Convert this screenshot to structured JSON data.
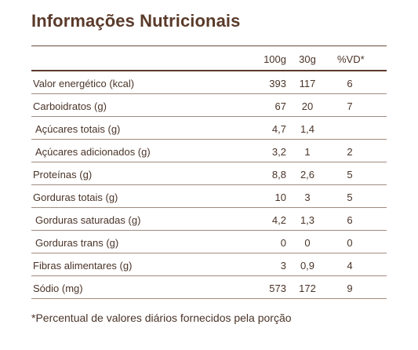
{
  "title": "Informações Nutricionais",
  "columns": {
    "c1": "100g",
    "c2": "30g",
    "c3": "%VD*"
  },
  "rows": [
    {
      "label": "Valor energético (kcal)",
      "c1": "393",
      "c2": "117",
      "c3": "6",
      "indent": false
    },
    {
      "label": "Carboidratos (g)",
      "c1": "67",
      "c2": "20",
      "c3": "7",
      "indent": false
    },
    {
      "label": "Açúcares totais (g)",
      "c1": "4,7",
      "c2": "1,4",
      "c3": "",
      "indent": true
    },
    {
      "label": "Açúcares adicionados (g)",
      "c1": "3,2",
      "c2": "1",
      "c3": "2",
      "indent": true
    },
    {
      "label": "Proteínas (g)",
      "c1": "8,8",
      "c2": "2,6",
      "c3": "5",
      "indent": false
    },
    {
      "label": "Gorduras totais (g)",
      "c1": "10",
      "c2": "3",
      "c3": "5",
      "indent": false
    },
    {
      "label": "Gorduras saturadas (g)",
      "c1": "4,2",
      "c2": "1,3",
      "c3": "6",
      "indent": true
    },
    {
      "label": "Gorduras trans (g)",
      "c1": "0",
      "c2": "0",
      "c3": "0",
      "indent": true
    },
    {
      "label": "Fibras alimentares (g)",
      "c1": "3",
      "c2": "0,9",
      "c3": "4",
      "indent": false
    },
    {
      "label": "Sódio (mg)",
      "c1": "573",
      "c2": "172",
      "c3": "9",
      "indent": false
    }
  ],
  "footnote": "*Percentual de valores diários fornecidos pela porção"
}
